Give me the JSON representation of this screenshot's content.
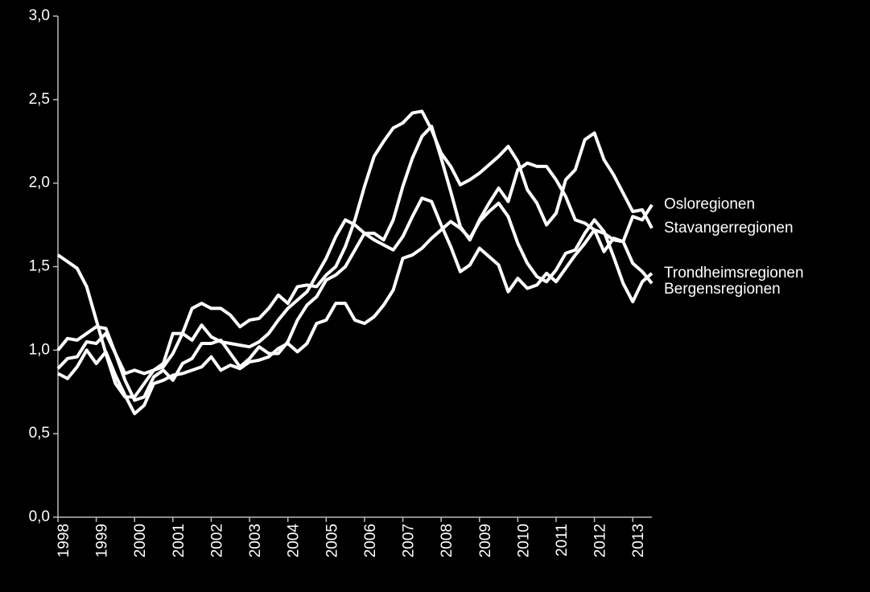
{
  "chart_data": {
    "type": "line",
    "categories": [
      "1998",
      null,
      null,
      null,
      "1999",
      null,
      null,
      null,
      "2000",
      null,
      null,
      null,
      "2001",
      null,
      null,
      null,
      "2002",
      null,
      null,
      null,
      "2003",
      null,
      null,
      null,
      "2004",
      null,
      null,
      null,
      "2005",
      null,
      null,
      null,
      "2006",
      null,
      null,
      null,
      "2007",
      null,
      null,
      null,
      "2008",
      null,
      null,
      null,
      "2009",
      null,
      null,
      null,
      "2010",
      null,
      null,
      null,
      "2011",
      null,
      null,
      null,
      "2012",
      null,
      null,
      null,
      "2013",
      null,
      null
    ],
    "ylim": [
      0,
      3
    ],
    "yticks": [
      {
        "value": 0,
        "label": "0,0"
      },
      {
        "value": 0.5,
        "label": "0,5"
      },
      {
        "value": 1,
        "label": "1,0"
      },
      {
        "value": 1.5,
        "label": "1,5"
      },
      {
        "value": 2,
        "label": "2,0"
      },
      {
        "value": 2.5,
        "label": "2,5"
      },
      {
        "value": 3,
        "label": "3,0"
      }
    ],
    "series": [
      {
        "name": "Osloregionen",
        "color": "#ffffff",
        "values": [
          1.57,
          1.53,
          1.49,
          1.38,
          1.18,
          0.98,
          0.8,
          0.72,
          0.72,
          0.8,
          0.88,
          0.92,
          1.1,
          1.1,
          1.06,
          1.15,
          1.08,
          1.05,
          1.04,
          1.03,
          1.02,
          1.05,
          1.1,
          1.18,
          1.25,
          1.3,
          1.35,
          1.45,
          1.55,
          1.68,
          1.78,
          1.75,
          1.7,
          1.7,
          1.66,
          1.78,
          1.98,
          2.15,
          2.28,
          2.34,
          2.15,
          1.95,
          1.74,
          1.66,
          1.78,
          1.88,
          1.97,
          1.89,
          2.08,
          2.12,
          2.1,
          2.1,
          2.02,
          1.92,
          1.78,
          1.76,
          1.72,
          1.7,
          1.66,
          1.65,
          1.8,
          1.78,
          1.87
        ]
      },
      {
        "name": "Stavangerregionen",
        "color": "#ffffff",
        "values": [
          1.0,
          1.07,
          1.06,
          1.1,
          1.14,
          1.13,
          0.98,
          0.86,
          0.88,
          0.86,
          0.88,
          0.9,
          0.98,
          1.1,
          1.25,
          1.28,
          1.25,
          1.25,
          1.21,
          1.14,
          1.18,
          1.19,
          1.25,
          1.33,
          1.28,
          1.38,
          1.39,
          1.38,
          1.45,
          1.5,
          1.62,
          1.78,
          1.98,
          2.16,
          2.25,
          2.33,
          2.36,
          2.42,
          2.43,
          2.32,
          2.18,
          2.1,
          1.99,
          2.02,
          2.06,
          2.11,
          2.16,
          2.22,
          2.13,
          1.96,
          1.88,
          1.75,
          1.82,
          2.02,
          2.08,
          2.26,
          2.3,
          2.14,
          2.05,
          1.94,
          1.83,
          1.84,
          1.73
        ]
      },
      {
        "name": "Trondheimsregionen",
        "color": "#ffffff",
        "values": [
          0.86,
          0.83,
          0.9,
          1.0,
          0.92,
          0.99,
          0.85,
          0.73,
          0.62,
          0.67,
          0.8,
          0.82,
          0.85,
          0.86,
          0.88,
          0.9,
          0.96,
          0.88,
          0.91,
          0.89,
          0.93,
          0.94,
          0.96,
          1.01,
          1.04,
          0.99,
          1.04,
          1.16,
          1.18,
          1.28,
          1.28,
          1.18,
          1.16,
          1.2,
          1.27,
          1.36,
          1.55,
          1.57,
          1.61,
          1.67,
          1.72,
          1.77,
          1.73,
          1.67,
          1.77,
          1.83,
          1.88,
          1.8,
          1.64,
          1.52,
          1.44,
          1.41,
          1.48,
          1.58,
          1.6,
          1.7,
          1.78,
          1.71,
          1.56,
          1.4,
          1.29,
          1.41,
          1.46
        ]
      },
      {
        "name": "Bergensregionen",
        "color": "#ffffff",
        "values": [
          0.89,
          0.95,
          0.96,
          1.05,
          1.04,
          1.1,
          0.98,
          0.82,
          0.7,
          0.72,
          0.84,
          0.88,
          0.82,
          0.92,
          0.95,
          1.04,
          1.04,
          1.06,
          0.98,
          0.9,
          0.95,
          1.02,
          0.98,
          0.98,
          1.05,
          1.18,
          1.27,
          1.32,
          1.42,
          1.45,
          1.5,
          1.6,
          1.7,
          1.66,
          1.63,
          1.6,
          1.68,
          1.8,
          1.91,
          1.89,
          1.75,
          1.62,
          1.47,
          1.51,
          1.61,
          1.56,
          1.51,
          1.35,
          1.43,
          1.37,
          1.39,
          1.46,
          1.41,
          1.49,
          1.57,
          1.64,
          1.72,
          1.59,
          1.67,
          1.65,
          1.52,
          1.47,
          1.4
        ]
      }
    ]
  }
}
